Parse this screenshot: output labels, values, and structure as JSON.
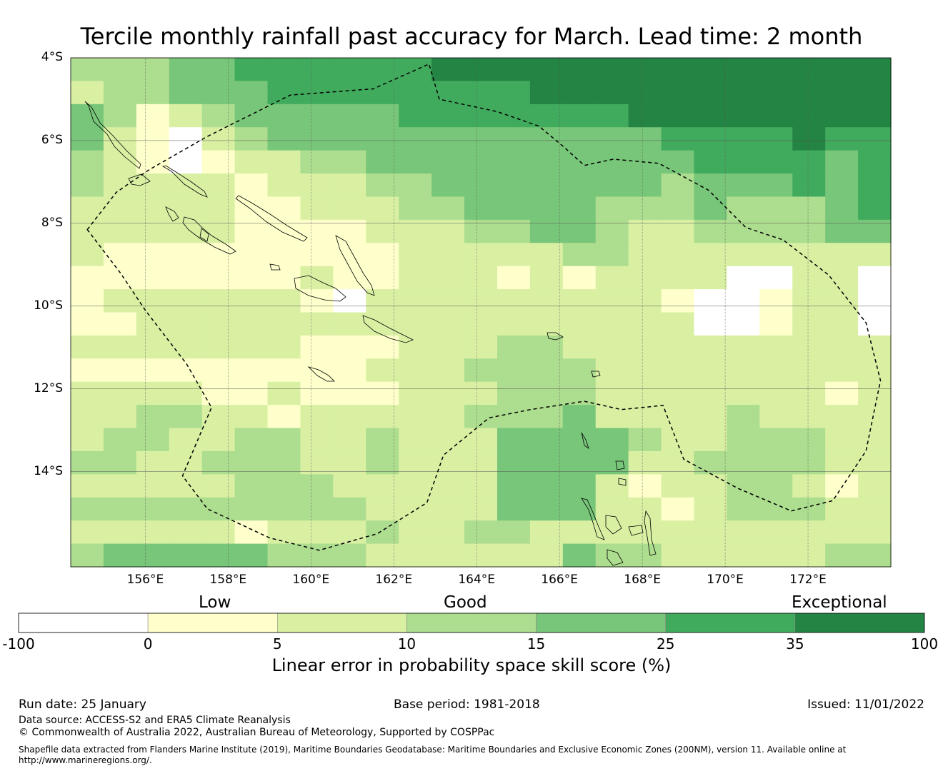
{
  "title": "Tercile monthly rainfall past accuracy for March. Lead time: 2 month",
  "map": {
    "lon_range": [
      154.2,
      174.0
    ],
    "lat_range": [
      -4.0,
      -16.3
    ],
    "grid_step_deg": 0.83,
    "lat_ticks": [
      {
        "value": -4,
        "label": "4°S"
      },
      {
        "value": -6,
        "label": "6°S"
      },
      {
        "value": -8,
        "label": "8°S"
      },
      {
        "value": -10,
        "label": "10°S"
      },
      {
        "value": -12,
        "label": "12°S"
      },
      {
        "value": -14,
        "label": "14°S"
      }
    ],
    "lon_ticks": [
      {
        "value": 156,
        "label": "156°E"
      },
      {
        "value": 158,
        "label": "158°E"
      },
      {
        "value": 160,
        "label": "160°E"
      },
      {
        "value": 162,
        "label": "162°E"
      },
      {
        "value": 164,
        "label": "164°E"
      },
      {
        "value": 166,
        "label": "166°E"
      },
      {
        "value": 168,
        "label": "168°E"
      },
      {
        "value": 170,
        "label": "170°E"
      },
      {
        "value": 172,
        "label": "172°E"
      }
    ],
    "skill_grid_categories": [
      "3334455555566666666666666",
      "2334445555555566666666666",
      "4312344444555555566666666",
      "4210234444444444445555655",
      "3210122334444444444555545",
      "3222212223344444443444545",
      "2222211222334444333433345",
      "2222211112223344322333344",
      "2111111111222223322222222",
      "1111111211222121222200220",
      "1222222102222222221001220",
      "1122222222222222222001220",
      "2222222111222332222222222",
      "1111111112223333222222222",
      "2222112111222333222222212",
      "2233221222223334222232222",
      "2332233223222444432233322",
      "3322333223222444422333322",
      "2222233322222444212233212",
      "3333333332222444221233322",
      "2222212223223322222222222",
      "3444443332222224332222233"
    ]
  },
  "eez_boundary": [
    [
      154.6,
      -8.15
    ],
    [
      155.3,
      -7.25
    ],
    [
      156.1,
      -6.7
    ],
    [
      157.5,
      -5.9
    ],
    [
      159.5,
      -4.9
    ],
    [
      161.5,
      -4.75
    ],
    [
      162.85,
      -4.15
    ],
    [
      163.1,
      -5.0
    ],
    [
      164.5,
      -5.3
    ],
    [
      165.5,
      -5.65
    ],
    [
      166.1,
      -6.15
    ],
    [
      166.6,
      -6.6
    ],
    [
      167.3,
      -6.45
    ],
    [
      168.4,
      -6.55
    ],
    [
      169.6,
      -7.2
    ],
    [
      170.5,
      -8.1
    ],
    [
      171.4,
      -8.4
    ],
    [
      172.5,
      -9.25
    ],
    [
      173.4,
      -10.4
    ],
    [
      173.75,
      -11.8
    ],
    [
      173.4,
      -13.5
    ],
    [
      172.6,
      -14.7
    ],
    [
      171.6,
      -14.95
    ],
    [
      170.3,
      -14.4
    ],
    [
      169.0,
      -13.7
    ],
    [
      168.5,
      -12.4
    ],
    [
      167.5,
      -12.5
    ],
    [
      166.6,
      -12.3
    ],
    [
      165.3,
      -12.5
    ],
    [
      164.3,
      -12.7
    ],
    [
      163.2,
      -13.6
    ],
    [
      162.8,
      -14.75
    ],
    [
      161.6,
      -15.5
    ],
    [
      160.2,
      -15.9
    ],
    [
      159.0,
      -15.6
    ],
    [
      157.5,
      -14.9
    ],
    [
      156.9,
      -14.1
    ],
    [
      157.6,
      -12.45
    ],
    [
      157.0,
      -11.4
    ],
    [
      156.0,
      -10.1
    ],
    [
      155.4,
      -9.2
    ],
    [
      154.6,
      -8.15
    ]
  ],
  "legend": {
    "category_labels": [
      "Low",
      "Good",
      "Exceptional"
    ],
    "colors": [
      "#ffffff",
      "#ffffcc",
      "#d9f0a3",
      "#addd8e",
      "#78c679",
      "#41ab5d",
      "#238443"
    ],
    "ticks": [
      "-100",
      "0",
      "5",
      "10",
      "15",
      "25",
      "35",
      "100"
    ],
    "axis_title": "Linear error in probability space skill score (%)"
  },
  "footer": {
    "run_date": "Run date: 25 January",
    "base_period": "Base period: 1981-2018",
    "issued": "Issued: 11/01/2022",
    "data_source": "Data source: ACCESS-S2 and ERA5 Climate Reanalysis",
    "copyright": "© Commonwealth of Australia 2022, Australian Bureau of Meteorology, Supported by COSPPac",
    "shapefile_line1": "Shapefile data extracted from Flanders Marine Institute (2019), Maritime Boundaries Geodatabase: Maritime Boundaries and Exclusive Economic Zones (200NM), version 11. Available online at",
    "shapefile_line2": "http://www.marineregions.org/."
  }
}
